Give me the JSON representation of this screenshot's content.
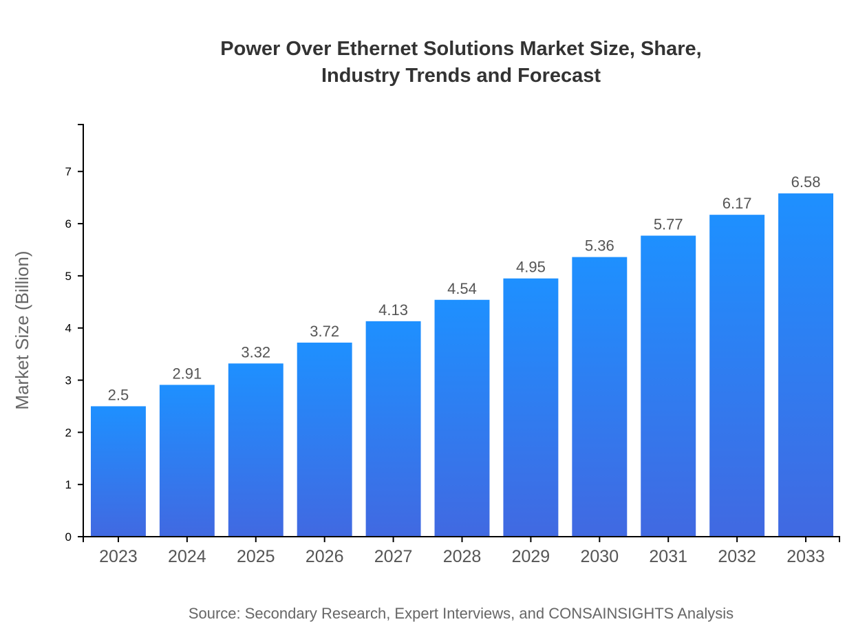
{
  "chart_data": {
    "type": "bar",
    "title_lines": [
      "Power Over Ethernet Solutions Market Size, Share,",
      "Industry Trends and Forecast"
    ],
    "categories": [
      "2023",
      "2024",
      "2025",
      "2026",
      "2027",
      "2028",
      "2029",
      "2030",
      "2031",
      "2032",
      "2033"
    ],
    "values": [
      2.5,
      2.91,
      3.32,
      3.72,
      4.13,
      4.54,
      4.95,
      5.36,
      5.77,
      6.17,
      6.58
    ],
    "xlabel": "",
    "ylabel": "Market Size (Billion)",
    "ylim": [
      0,
      7.9
    ],
    "yticks": [
      0,
      1,
      2,
      3,
      4,
      5,
      6,
      7
    ],
    "grid": false,
    "colors": {
      "bar_top": "#1e90ff",
      "bar_bottom": "#4169e1"
    },
    "source": "Source: Secondary Research, Expert Interviews, and CONSAINSIGHTS Analysis"
  }
}
